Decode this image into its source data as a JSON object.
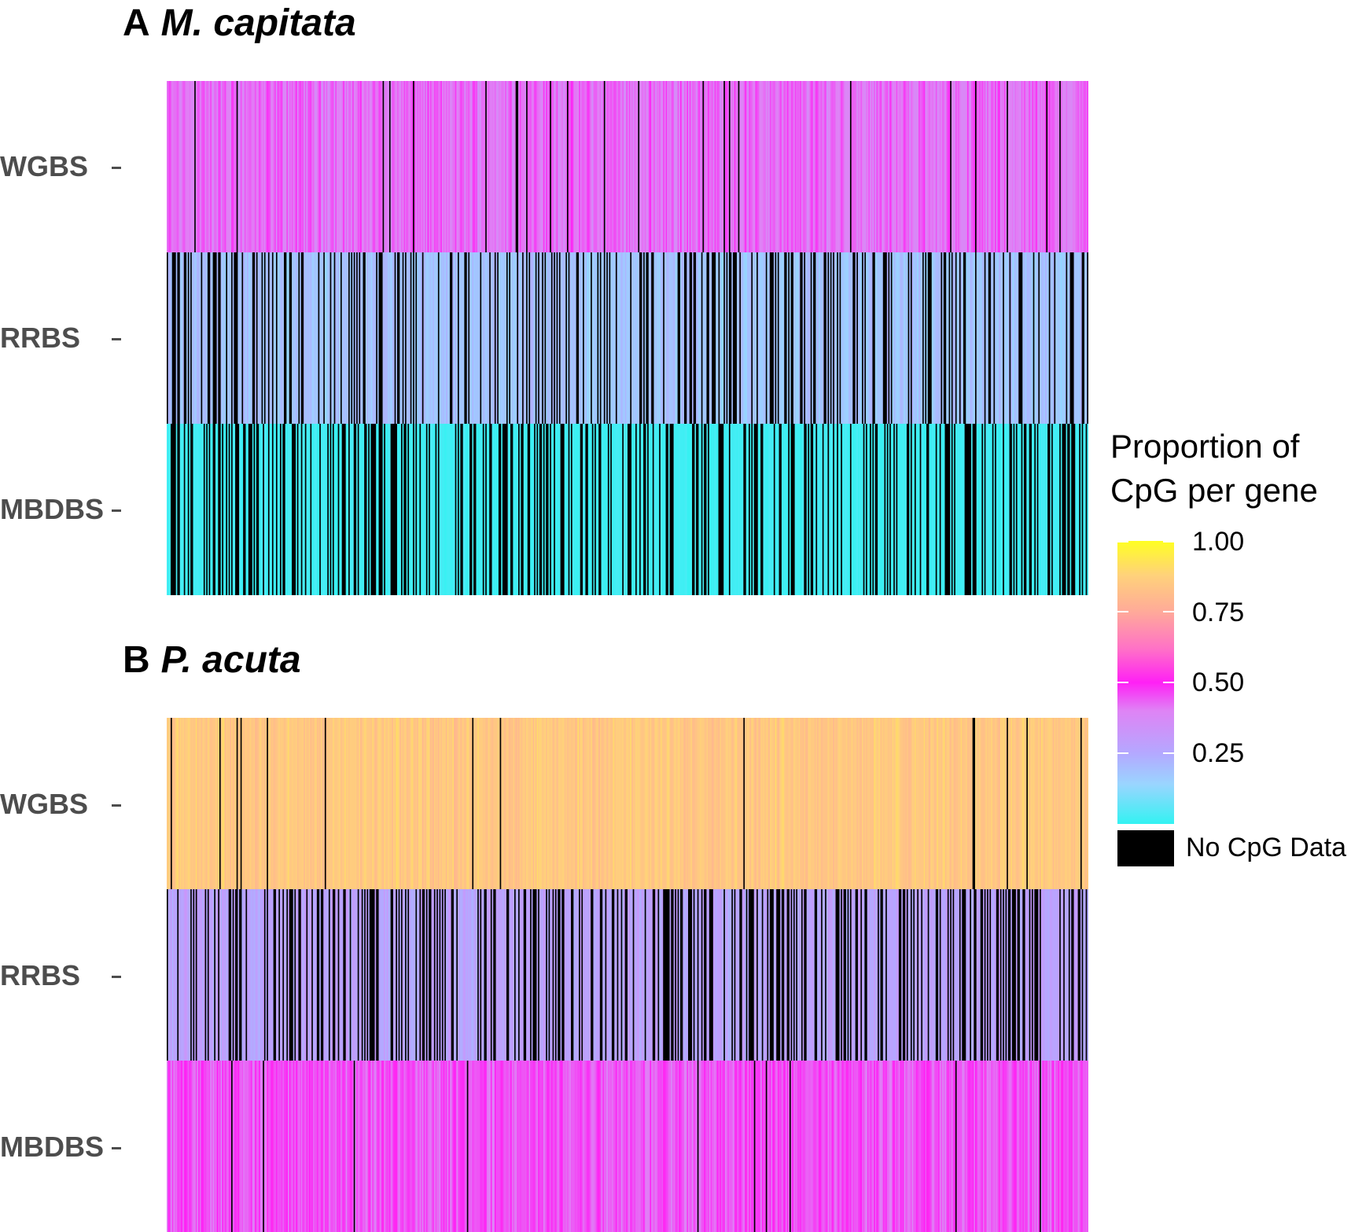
{
  "panels": [
    {
      "letter": "A",
      "species": "M. capitata"
    },
    {
      "letter": "B",
      "species": "P. acuta"
    }
  ],
  "chart_data": [
    {
      "type": "heatmap",
      "title": "A M. capitata",
      "rows": [
        "WGBS",
        "RRBS",
        "MBDBS"
      ],
      "row_profiles": [
        {
          "label": "WGBS",
          "typical_proportion": 0.42,
          "spread": 0.08,
          "no_data_fraction": 0.03
        },
        {
          "label": "RRBS",
          "typical_proportion": 0.18,
          "spread": 0.06,
          "no_data_fraction": 0.3
        },
        {
          "label": "MBDBS",
          "typical_proportion": 0.02,
          "spread": 0.02,
          "no_data_fraction": 0.35
        }
      ]
    },
    {
      "type": "heatmap",
      "title": "B P. acuta",
      "rows": [
        "WGBS",
        "RRBS",
        "MBDBS"
      ],
      "row_profiles": [
        {
          "label": "WGBS",
          "typical_proportion": 0.85,
          "spread": 0.06,
          "no_data_fraction": 0.02
        },
        {
          "label": "RRBS",
          "typical_proportion": 0.27,
          "spread": 0.06,
          "no_data_fraction": 0.35
        },
        {
          "label": "MBDBS",
          "typical_proportion": 0.45,
          "spread": 0.08,
          "no_data_fraction": 0.01
        }
      ]
    }
  ],
  "legend": {
    "title_line1": "Proportion of",
    "title_line2": "CpG per gene",
    "ticks": [
      "1.00",
      "0.75",
      "0.50",
      "0.25"
    ],
    "na_label": "No CpG Data",
    "colors": {
      "low": "#33f2f2",
      "mid": "#ff20f5",
      "high": "#ffff22",
      "no_data": "#000000"
    }
  }
}
